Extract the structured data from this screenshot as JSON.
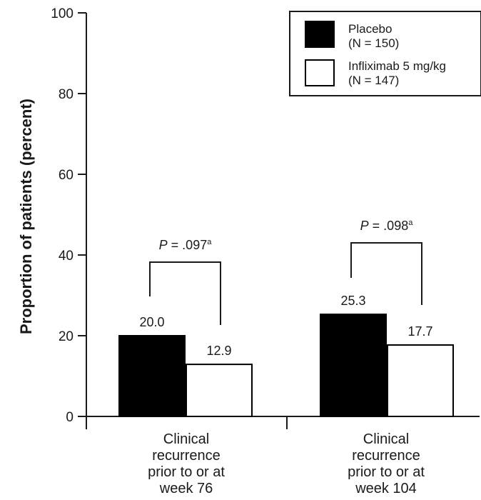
{
  "chart_data": {
    "type": "bar",
    "ylabel": "Proportion of patients (percent)",
    "ylim": [
      0,
      100
    ],
    "yticks": [
      0,
      20,
      40,
      60,
      80,
      100
    ],
    "categories": [
      [
        "Clinical",
        "recurrence",
        "prior to or at",
        "week 76"
      ],
      [
        "Clinical",
        "recurrence",
        "prior to or at",
        "week 104"
      ]
    ],
    "series": [
      {
        "name": "Placebo",
        "n_label": "(N = 150)",
        "color": "#000000",
        "values": [
          20.0,
          25.3
        ],
        "labels": [
          "20.0",
          "25.3"
        ]
      },
      {
        "name": "Infliximab 5 mg/kg",
        "n_label": "(N = 147)",
        "color": "#ffffff",
        "values": [
          12.9,
          17.7
        ],
        "labels": [
          "12.9",
          "17.7"
        ]
      }
    ],
    "annotations": [
      {
        "p_symbol": "P",
        "p_text": " = .097",
        "footnote": "a"
      },
      {
        "p_symbol": "P",
        "p_text": " = .098",
        "footnote": "a"
      }
    ],
    "legend_position": "top-right"
  }
}
